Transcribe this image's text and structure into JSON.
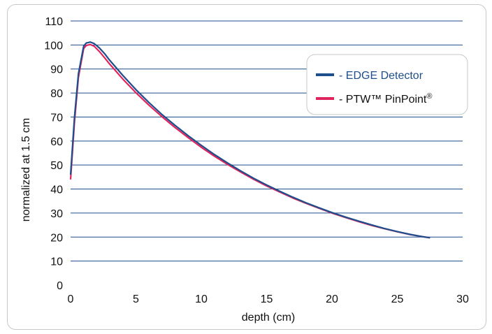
{
  "chart_data": {
    "type": "line",
    "title": "",
    "xlabel": "depth (cm)",
    "ylabel": "normalized at 1.5 cm",
    "xlim": [
      0,
      30
    ],
    "ylim": [
      0,
      110
    ],
    "x_ticks": [
      "0",
      "5",
      "10",
      "15",
      "20",
      "25",
      "30"
    ],
    "y_ticks": [
      "0",
      "10",
      "20",
      "30",
      "40",
      "50",
      "60",
      "70",
      "80",
      "90",
      "100",
      "110"
    ],
    "grid": "horizontal",
    "legend_position": "top-right",
    "series": [
      {
        "name": "EDGE Detector",
        "legend_text": "- EDGE Detector",
        "color": "#1f4e8c",
        "x": [
          0,
          0.3,
          0.6,
          1.0,
          1.2,
          1.5,
          1.8,
          2.2,
          2.6,
          3.0,
          4.0,
          5.0,
          6.0,
          7.0,
          8.0,
          9.0,
          10.0,
          11.0,
          12.0,
          13.0,
          14.0,
          15.0,
          16.0,
          17.0,
          18.0,
          19.0,
          20.0,
          21.0,
          22.0,
          23.0,
          24.0,
          25.0,
          26.0,
          27.0,
          27.5
        ],
        "y": [
          46,
          70,
          88,
          99.5,
          100.8,
          101.2,
          100.6,
          98.8,
          96.4,
          93.6,
          87.3,
          81.4,
          76,
          71,
          66.5,
          62.2,
          58.2,
          54.4,
          50.9,
          47.6,
          44.5,
          41.7,
          39.1,
          36.6,
          34.3,
          32.2,
          30.2,
          28.4,
          26.7,
          25.1,
          23.6,
          22.3,
          21.1,
          20.1,
          19.7
        ]
      },
      {
        "name": "PTW™ PinPoint®",
        "legend_text": "- PTW™ PinPoint",
        "legend_superscript": "®",
        "color": "#e0245e",
        "x": [
          0,
          0.3,
          0.6,
          1.0,
          1.2,
          1.5,
          1.8,
          2.2,
          2.6,
          3.0,
          4.0,
          5.0,
          6.0,
          7.0,
          8.0,
          9.0,
          10.0,
          11.0,
          12.0,
          13.0,
          14.0,
          15.0,
          16.0,
          17.0,
          18.0,
          19.0,
          20.0,
          21.0,
          22.0,
          23.0,
          24.0,
          25.0,
          26.0,
          27.0,
          27.5
        ],
        "y": [
          44,
          68,
          86.5,
          98.5,
          99.8,
          100.2,
          99.5,
          97.3,
          94.7,
          92,
          85.8,
          80.1,
          74.9,
          70.1,
          65.6,
          61.4,
          57.4,
          53.7,
          50.3,
          47.1,
          44.1,
          41.3,
          38.8,
          36.3,
          34.1,
          32,
          30,
          28.2,
          26.5,
          24.9,
          23.5,
          22.2,
          21,
          20.1,
          19.7
        ]
      }
    ]
  }
}
